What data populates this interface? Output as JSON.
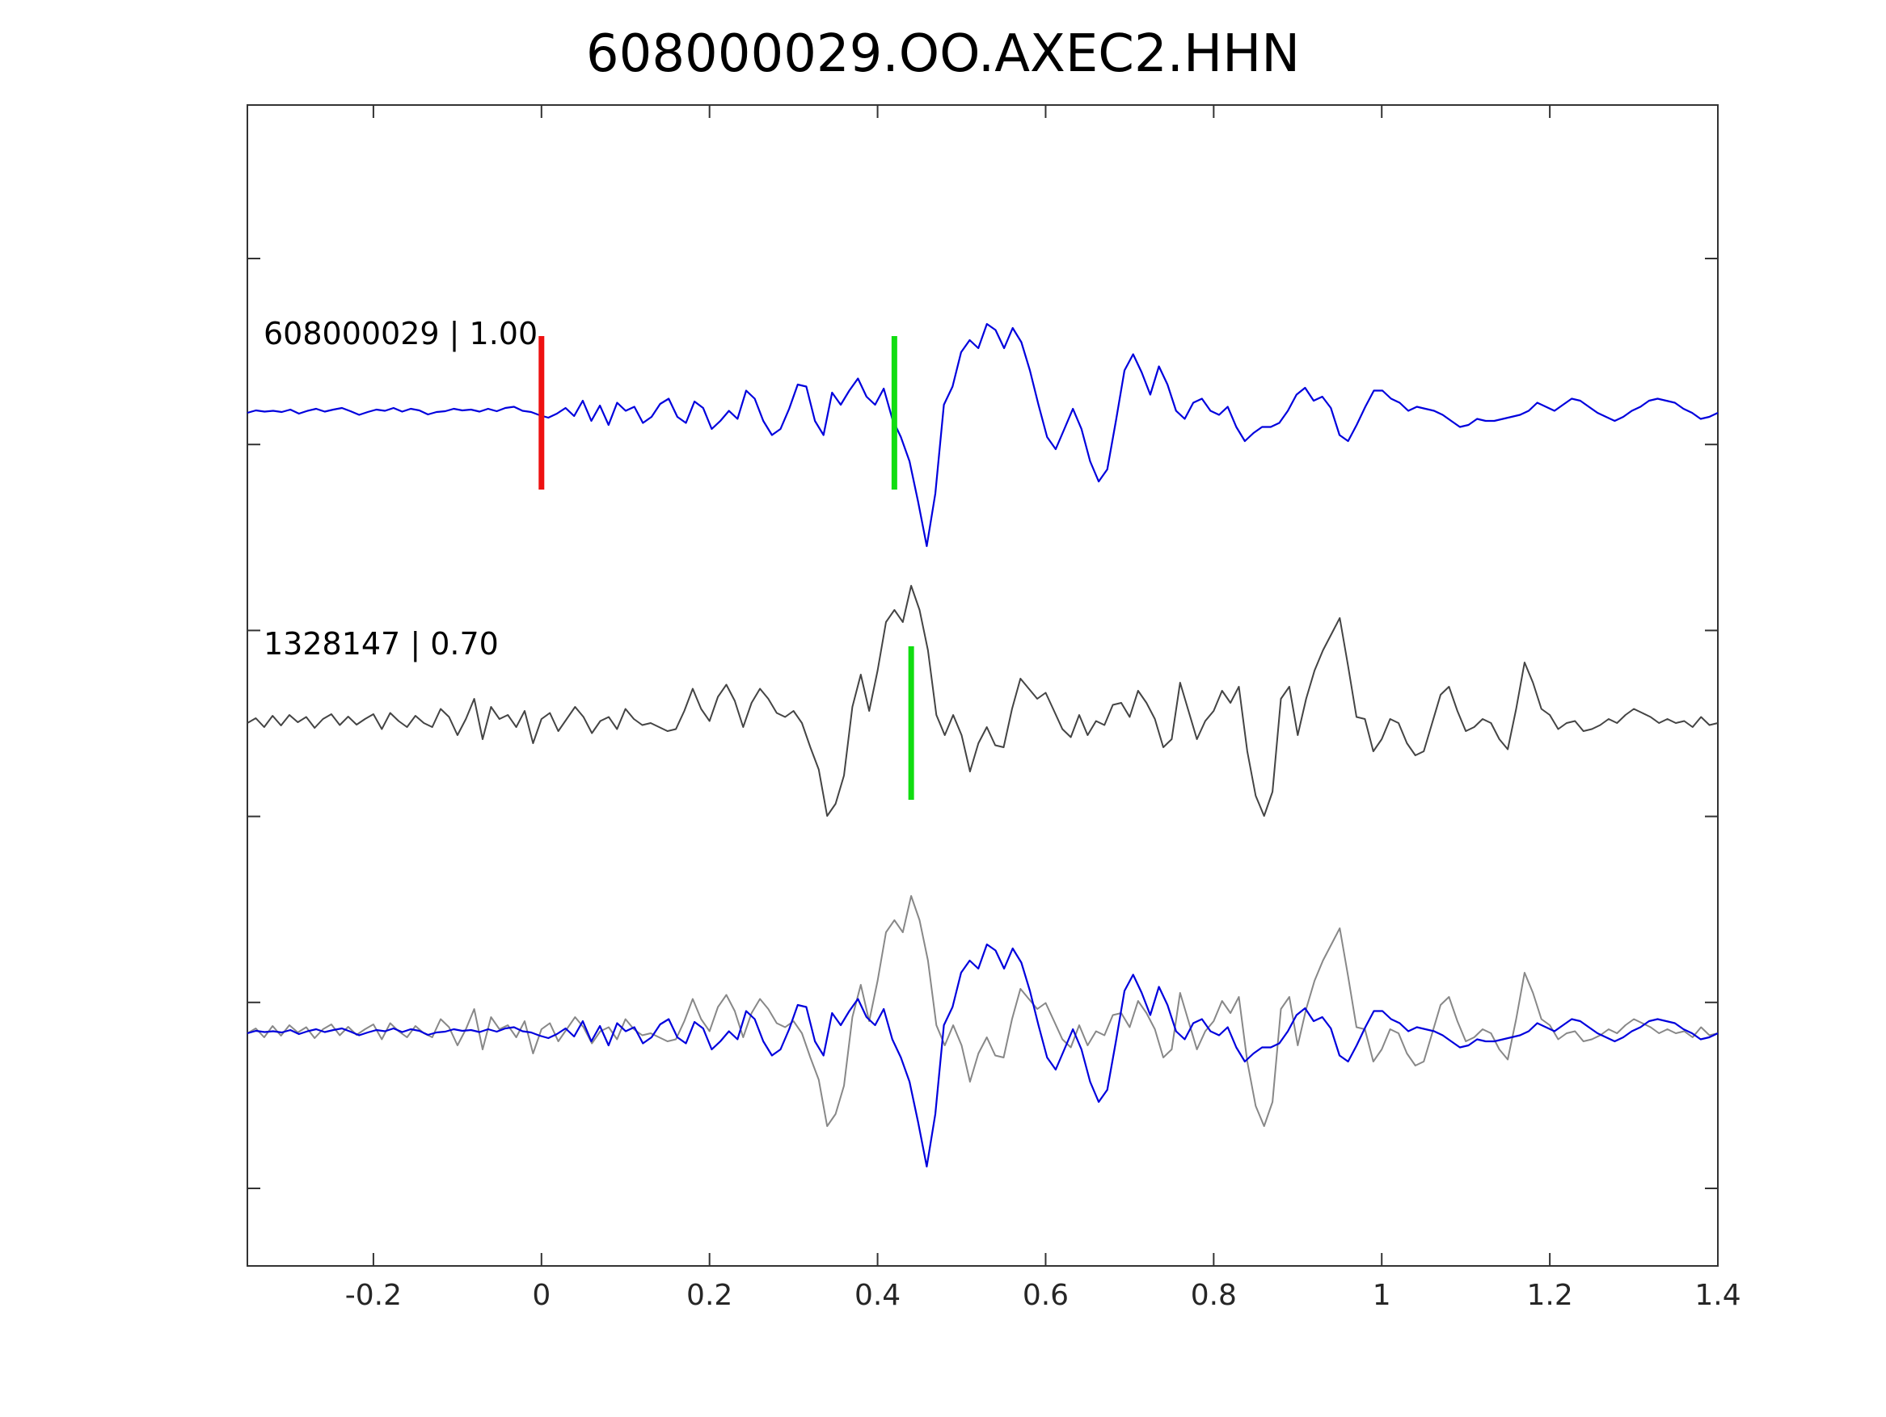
{
  "chart_data": {
    "type": "line",
    "title": "608000029.OO.AXEC2.HHN",
    "xlabel": "",
    "ylabel": "",
    "xlim": [
      -0.35,
      1.4
    ],
    "xticks": [
      -0.2,
      0,
      0.2,
      0.4,
      0.6,
      0.8,
      1,
      1.2,
      1.4
    ],
    "xtick_labels": [
      "-0.2",
      "0",
      "0.2",
      "0.4",
      "0.6",
      "0.8",
      "1",
      "1.2",
      "1.4"
    ],
    "y_tick_count": 7,
    "y_tick_labels": "none",
    "grid": false,
    "legend": "none",
    "panels": [
      {
        "label": "608000029 | 1.00",
        "traces": [
          {
            "series": "template",
            "color": "#0000dd"
          }
        ],
        "picks": [
          {
            "x": 0.0,
            "color": "#ee1111",
            "phase": "P"
          },
          {
            "x": 0.42,
            "color": "#11dd11",
            "phase": "S"
          }
        ]
      },
      {
        "label": "1328147 | 0.70",
        "traces": [
          {
            "series": "detection",
            "color": "#444444"
          }
        ],
        "picks": [
          {
            "x": 0.44,
            "color": "#11dd11",
            "phase": "S"
          }
        ]
      },
      {
        "label": "",
        "traces": [
          {
            "series": "detection",
            "color": "#888888"
          },
          {
            "series": "template",
            "color": "#0000dd"
          }
        ],
        "picks": []
      }
    ],
    "series": [
      {
        "name": "template",
        "x_start": -0.35,
        "x_end": 1.4,
        "values": [
          0.0,
          0.06,
          0.03,
          0.05,
          0.02,
          0.08,
          -0.02,
          0.05,
          0.1,
          0.03,
          0.08,
          0.12,
          0.04,
          -0.05,
          0.02,
          0.08,
          0.05,
          0.12,
          0.03,
          0.1,
          0.06,
          -0.04,
          0.02,
          0.04,
          0.1,
          0.06,
          0.08,
          0.03,
          0.1,
          0.04,
          0.12,
          0.15,
          0.05,
          0.02,
          -0.06,
          -0.12,
          -0.02,
          0.12,
          -0.08,
          0.3,
          -0.2,
          0.18,
          -0.3,
          0.25,
          0.05,
          0.15,
          -0.25,
          -0.1,
          0.22,
          0.35,
          -0.1,
          -0.25,
          0.28,
          0.12,
          -0.4,
          -0.2,
          0.05,
          -0.15,
          0.55,
          0.35,
          -0.2,
          -0.55,
          -0.4,
          0.1,
          0.7,
          0.65,
          -0.2,
          -0.55,
          0.5,
          0.2,
          0.55,
          0.85,
          0.4,
          0.2,
          0.6,
          -0.15,
          -0.6,
          -1.2,
          -2.2,
          -3.3,
          -2.0,
          0.2,
          0.65,
          1.5,
          1.8,
          1.6,
          2.2,
          2.05,
          1.6,
          2.1,
          1.75,
          1.05,
          0.2,
          -0.6,
          -0.9,
          -0.4,
          0.1,
          -0.4,
          -1.2,
          -1.7,
          -1.4,
          -0.2,
          1.05,
          1.45,
          1.0,
          0.45,
          1.15,
          0.7,
          0.05,
          -0.15,
          0.25,
          0.35,
          0.05,
          -0.05,
          0.15,
          -0.35,
          -0.7,
          -0.5,
          -0.35,
          -0.35,
          -0.25,
          0.05,
          0.45,
          0.62,
          0.3,
          0.4,
          0.12,
          -0.55,
          -0.7,
          -0.3,
          0.15,
          0.55,
          0.55,
          0.35,
          0.25,
          0.05,
          0.15,
          0.1,
          0.05,
          -0.05,
          -0.2,
          -0.35,
          -0.3,
          -0.15,
          -0.2,
          -0.2,
          -0.15,
          -0.1,
          -0.05,
          0.05,
          0.25,
          0.15,
          0.05,
          0.2,
          0.35,
          0.3,
          0.15,
          0.0,
          -0.1,
          -0.2,
          -0.1,
          0.05,
          0.15,
          0.3,
          0.35,
          0.3,
          0.25,
          0.1,
          0.0,
          -0.15,
          -0.1,
          0.0
        ]
      },
      {
        "name": "detection",
        "x_start": -0.35,
        "x_end": 1.4,
        "values": [
          0.0,
          0.12,
          -0.1,
          0.18,
          -0.06,
          0.2,
          0.02,
          0.15,
          -0.12,
          0.1,
          0.22,
          -0.05,
          0.16,
          -0.04,
          0.1,
          0.22,
          -0.15,
          0.25,
          0.05,
          -0.1,
          0.18,
          0.0,
          -0.1,
          0.35,
          0.15,
          -0.3,
          0.1,
          0.6,
          -0.4,
          0.4,
          0.1,
          0.2,
          -0.1,
          0.3,
          -0.5,
          0.1,
          0.25,
          -0.2,
          0.1,
          0.4,
          0.15,
          -0.25,
          0.05,
          0.15,
          -0.15,
          0.35,
          0.1,
          -0.05,
          0.0,
          -0.1,
          -0.2,
          -0.15,
          0.3,
          0.85,
          0.35,
          0.05,
          0.65,
          0.95,
          0.55,
          -0.1,
          0.5,
          0.85,
          0.6,
          0.25,
          0.15,
          0.3,
          0.0,
          -0.6,
          -1.15,
          -2.3,
          -2.0,
          -1.3,
          0.4,
          1.2,
          0.3,
          1.3,
          2.5,
          2.8,
          2.5,
          3.4,
          2.8,
          1.8,
          0.2,
          -0.3,
          0.2,
          -0.3,
          -1.2,
          -0.5,
          -0.1,
          -0.55,
          -0.6,
          0.35,
          1.1,
          0.85,
          0.6,
          0.75,
          0.3,
          -0.15,
          -0.35,
          0.2,
          -0.3,
          0.05,
          -0.05,
          0.45,
          0.5,
          0.15,
          0.8,
          0.5,
          0.1,
          -0.6,
          -0.4,
          1.0,
          0.3,
          -0.4,
          0.05,
          0.3,
          0.8,
          0.5,
          0.9,
          -0.7,
          -1.8,
          -2.3,
          -1.7,
          0.6,
          0.9,
          -0.3,
          0.6,
          1.3,
          1.8,
          2.2,
          2.6,
          1.4,
          0.15,
          0.1,
          -0.7,
          -0.4,
          0.1,
          0.0,
          -0.5,
          -0.8,
          -0.7,
          0.0,
          0.7,
          0.9,
          0.3,
          -0.2,
          -0.1,
          0.1,
          0.0,
          -0.4,
          -0.65,
          0.35,
          1.5,
          1.0,
          0.35,
          0.2,
          -0.15,
          0.0,
          0.05,
          -0.2,
          -0.15,
          -0.05,
          0.1,
          0.0,
          0.2,
          0.35,
          0.25,
          0.15,
          0.0,
          0.1,
          0.0,
          0.05,
          -0.1,
          0.15,
          -0.05,
          0.0
        ]
      }
    ]
  }
}
